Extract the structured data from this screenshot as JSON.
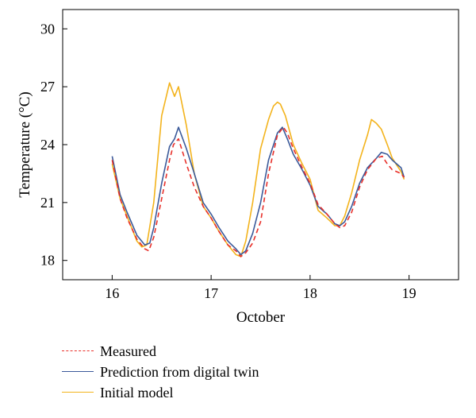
{
  "chart_data": {
    "type": "line",
    "xlabel": "October",
    "ylabel": "Temperature (°C)",
    "xlim": [
      15.5,
      19.5
    ],
    "ylim": [
      17,
      31
    ],
    "x_ticks": [
      16,
      17,
      18,
      19
    ],
    "y_ticks": [
      18,
      21,
      24,
      27,
      30
    ],
    "grid": false,
    "legend_position": "below",
    "series": [
      {
        "name": "Measured",
        "color": "#e8302a",
        "dash": "dashed",
        "x": [
          16.0,
          16.08,
          16.15,
          16.25,
          16.33,
          16.37,
          16.42,
          16.5,
          16.58,
          16.62,
          16.67,
          16.75,
          16.83,
          16.92,
          17.0,
          17.08,
          17.17,
          17.25,
          17.3,
          17.35,
          17.42,
          17.5,
          17.58,
          17.67,
          17.73,
          17.77,
          17.83,
          17.92,
          18.0,
          18.08,
          18.17,
          18.25,
          18.3,
          18.35,
          18.42,
          18.5,
          18.58,
          18.67,
          18.73,
          18.78,
          18.83,
          18.92,
          18.95
        ],
        "y": [
          23.2,
          21.2,
          20.2,
          19.1,
          18.6,
          18.5,
          19.2,
          21.2,
          23.2,
          24.0,
          24.3,
          23.0,
          21.8,
          20.8,
          20.2,
          19.5,
          18.8,
          18.5,
          18.2,
          18.4,
          18.9,
          20.0,
          22.5,
          24.5,
          24.9,
          24.6,
          23.8,
          22.8,
          22.0,
          20.9,
          20.4,
          19.9,
          19.7,
          19.8,
          20.5,
          21.8,
          22.7,
          23.3,
          23.4,
          23.0,
          22.7,
          22.5,
          22.3
        ]
      },
      {
        "name": "Prediction from digital twin",
        "color": "#3b5a9a",
        "dash": "solid",
        "x": [
          16.0,
          16.08,
          16.15,
          16.25,
          16.33,
          16.38,
          16.42,
          16.5,
          16.58,
          16.63,
          16.67,
          16.75,
          16.83,
          16.92,
          17.0,
          17.08,
          17.17,
          17.25,
          17.3,
          17.35,
          17.42,
          17.5,
          17.58,
          17.67,
          17.72,
          17.77,
          17.83,
          17.92,
          18.0,
          18.08,
          18.17,
          18.25,
          18.3,
          18.35,
          18.42,
          18.5,
          18.58,
          18.67,
          18.72,
          18.78,
          18.83,
          18.92,
          18.95
        ],
        "y": [
          23.4,
          21.4,
          20.5,
          19.3,
          18.8,
          18.9,
          19.7,
          22.0,
          23.9,
          24.3,
          24.9,
          23.8,
          22.5,
          21.0,
          20.4,
          19.7,
          19.0,
          18.6,
          18.3,
          18.5,
          19.4,
          21.0,
          23.2,
          24.6,
          24.9,
          24.3,
          23.5,
          22.7,
          21.9,
          20.8,
          20.4,
          19.9,
          19.8,
          20.0,
          20.8,
          22.0,
          22.8,
          23.3,
          23.6,
          23.5,
          23.2,
          22.8,
          22.3
        ]
      },
      {
        "name": "Initial model",
        "color": "#f3b31c",
        "dash": "solid",
        "x": [
          16.0,
          16.08,
          16.15,
          16.25,
          16.3,
          16.35,
          16.42,
          16.5,
          16.58,
          16.63,
          16.67,
          16.75,
          16.83,
          16.92,
          17.0,
          17.08,
          17.17,
          17.25,
          17.3,
          17.35,
          17.42,
          17.5,
          17.58,
          17.63,
          17.67,
          17.7,
          17.75,
          17.83,
          17.92,
          18.0,
          18.08,
          18.17,
          18.25,
          18.3,
          18.35,
          18.42,
          18.5,
          18.58,
          18.62,
          18.67,
          18.72,
          18.78,
          18.83,
          18.92,
          18.95
        ],
        "y": [
          23.0,
          21.2,
          20.3,
          19.0,
          18.7,
          18.8,
          21.0,
          25.5,
          27.2,
          26.5,
          27.0,
          25.0,
          22.5,
          20.8,
          20.2,
          19.5,
          18.8,
          18.3,
          18.2,
          19.0,
          21.0,
          23.8,
          25.3,
          26.0,
          26.2,
          26.1,
          25.5,
          24.0,
          23.0,
          22.2,
          20.6,
          20.2,
          19.8,
          19.8,
          20.3,
          21.5,
          23.2,
          24.5,
          25.3,
          25.1,
          24.8,
          24.0,
          23.3,
          22.6,
          22.2
        ]
      }
    ]
  }
}
